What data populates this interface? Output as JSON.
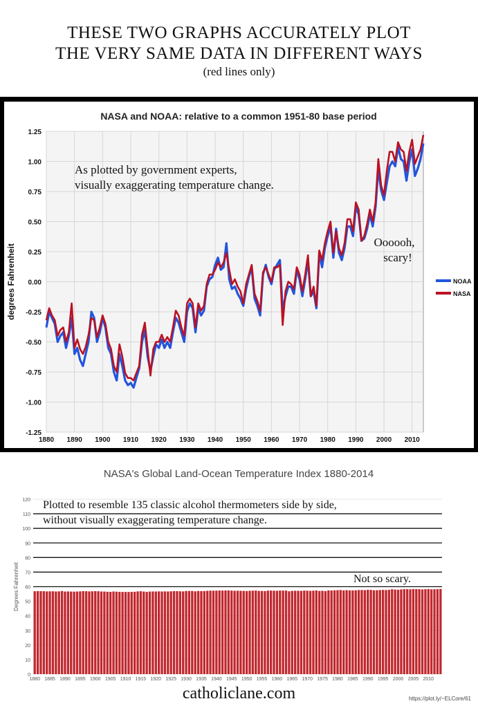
{
  "headline": {
    "line1": "THESE TWO GRAPHS ACCURATELY PLOT",
    "line2": "THE VERY SAME DATA IN DIFFERENT WAYS",
    "line3": "(red lines only)"
  },
  "colors": {
    "noaa": "#2255dd",
    "nasa": "#bb1122",
    "bar": "#c0282e",
    "panel_bg": "#000000"
  },
  "footer": {
    "site": "catholiclane.com",
    "url": "https://plot.ly/~ELCore/61"
  },
  "chart_data": [
    {
      "type": "line",
      "title": "NASA and NOAA: relative to a common 1951-80 base period",
      "xlabel": "",
      "ylabel": "degrees Fahrenheit",
      "xlim": [
        1880,
        2014
      ],
      "ylim": [
        -1.25,
        1.25
      ],
      "xticks": [
        "1880",
        "1890",
        "1900",
        "1910",
        "1920",
        "1930",
        "1940",
        "1950",
        "1960",
        "1970",
        "1980",
        "1990",
        "2000",
        "2010"
      ],
      "yticks": [
        "1.25",
        "1.00",
        "0.75",
        "0.50",
        "0.25",
        "0.00",
        "-0.25",
        "-0.50",
        "-0.75",
        "-1.00",
        "-1.25"
      ],
      "grid": true,
      "legend": "right",
      "annotations": [
        "As plotted by government experts,",
        "visually exaggerating temperature change.",
        "Oooooh,",
        "scary!"
      ],
      "x": [
        1880,
        1881,
        1882,
        1883,
        1884,
        1885,
        1886,
        1887,
        1888,
        1889,
        1890,
        1891,
        1892,
        1893,
        1894,
        1895,
        1896,
        1897,
        1898,
        1899,
        1900,
        1901,
        1902,
        1903,
        1904,
        1905,
        1906,
        1907,
        1908,
        1909,
        1910,
        1911,
        1912,
        1913,
        1914,
        1915,
        1916,
        1917,
        1918,
        1919,
        1920,
        1921,
        1922,
        1923,
        1924,
        1925,
        1926,
        1927,
        1928,
        1929,
        1930,
        1931,
        1932,
        1933,
        1934,
        1935,
        1936,
        1937,
        1938,
        1939,
        1940,
        1941,
        1942,
        1943,
        1944,
        1945,
        1946,
        1947,
        1948,
        1949,
        1950,
        1951,
        1952,
        1953,
        1954,
        1955,
        1956,
        1957,
        1958,
        1959,
        1960,
        1961,
        1962,
        1963,
        1964,
        1965,
        1966,
        1967,
        1968,
        1969,
        1970,
        1971,
        1972,
        1973,
        1974,
        1975,
        1976,
        1977,
        1978,
        1979,
        1980,
        1981,
        1982,
        1983,
        1984,
        1985,
        1986,
        1987,
        1988,
        1989,
        1990,
        1991,
        1992,
        1993,
        1994,
        1995,
        1996,
        1997,
        1998,
        1999,
        2000,
        2001,
        2002,
        2003,
        2004,
        2005,
        2006,
        2007,
        2008,
        2009,
        2010,
        2011,
        2012,
        2013,
        2014
      ],
      "series": [
        {
          "name": "NOAA",
          "values": [
            -0.38,
            -0.25,
            -0.3,
            -0.35,
            -0.5,
            -0.45,
            -0.42,
            -0.55,
            -0.45,
            -0.3,
            -0.6,
            -0.55,
            -0.65,
            -0.7,
            -0.6,
            -0.5,
            -0.25,
            -0.3,
            -0.5,
            -0.42,
            -0.3,
            -0.38,
            -0.55,
            -0.6,
            -0.75,
            -0.82,
            -0.6,
            -0.7,
            -0.82,
            -0.86,
            -0.84,
            -0.88,
            -0.8,
            -0.72,
            -0.5,
            -0.4,
            -0.62,
            -0.74,
            -0.62,
            -0.52,
            -0.55,
            -0.48,
            -0.55,
            -0.5,
            -0.55,
            -0.42,
            -0.3,
            -0.34,
            -0.42,
            -0.5,
            -0.25,
            -0.18,
            -0.22,
            -0.42,
            -0.22,
            -0.28,
            -0.24,
            -0.04,
            0.02,
            0.04,
            0.14,
            0.2,
            0.1,
            0.12,
            0.32,
            0.02,
            -0.06,
            -0.04,
            -0.1,
            -0.14,
            -0.2,
            -0.06,
            0.04,
            0.12,
            -0.14,
            -0.2,
            -0.28,
            0.06,
            0.14,
            0.04,
            -0.02,
            0.1,
            0.14,
            0.18,
            -0.24,
            -0.12,
            -0.04,
            -0.04,
            -0.1,
            0.1,
            0.02,
            -0.12,
            0.02,
            0.18,
            -0.12,
            -0.08,
            -0.22,
            0.24,
            0.12,
            0.28,
            0.38,
            0.46,
            0.2,
            0.44,
            0.24,
            0.18,
            0.28,
            0.46,
            0.46,
            0.38,
            0.62,
            0.56,
            0.34,
            0.36,
            0.44,
            0.56,
            0.46,
            0.62,
            0.94,
            0.76,
            0.68,
            0.82,
            0.96,
            1.0,
            0.96,
            1.12,
            1.02,
            1.0,
            0.84,
            1.0,
            1.1,
            0.88,
            0.94,
            1.02,
            1.15
          ]
        },
        {
          "name": "NASA",
          "values": [
            -0.32,
            -0.22,
            -0.28,
            -0.32,
            -0.45,
            -0.4,
            -0.38,
            -0.5,
            -0.42,
            -0.18,
            -0.55,
            -0.48,
            -0.56,
            -0.6,
            -0.54,
            -0.44,
            -0.3,
            -0.32,
            -0.46,
            -0.38,
            -0.28,
            -0.35,
            -0.5,
            -0.56,
            -0.7,
            -0.75,
            -0.52,
            -0.62,
            -0.76,
            -0.8,
            -0.8,
            -0.82,
            -0.76,
            -0.7,
            -0.44,
            -0.34,
            -0.56,
            -0.78,
            -0.56,
            -0.5,
            -0.5,
            -0.44,
            -0.5,
            -0.46,
            -0.5,
            -0.38,
            -0.24,
            -0.28,
            -0.38,
            -0.45,
            -0.18,
            -0.14,
            -0.18,
            -0.38,
            -0.18,
            -0.24,
            -0.2,
            -0.02,
            0.06,
            0.06,
            0.1,
            0.16,
            0.12,
            0.16,
            0.24,
            0.1,
            -0.02,
            0.02,
            -0.04,
            -0.08,
            -0.18,
            -0.02,
            0.06,
            0.14,
            -0.1,
            -0.16,
            -0.24,
            0.08,
            0.12,
            0.06,
            0.0,
            0.12,
            0.12,
            0.14,
            -0.36,
            -0.08,
            0.0,
            -0.02,
            -0.06,
            0.12,
            0.06,
            -0.08,
            0.06,
            0.22,
            -0.12,
            -0.04,
            -0.2,
            0.26,
            0.18,
            0.32,
            0.42,
            0.5,
            0.24,
            0.42,
            0.28,
            0.22,
            0.32,
            0.52,
            0.52,
            0.42,
            0.66,
            0.6,
            0.34,
            0.38,
            0.48,
            0.6,
            0.5,
            0.66,
            1.02,
            0.8,
            0.72,
            0.92,
            1.08,
            1.08,
            1.0,
            1.16,
            1.1,
            1.08,
            0.92,
            1.08,
            1.18,
            0.98,
            1.04,
            1.1,
            1.22
          ]
        }
      ]
    },
    {
      "type": "bar",
      "title": "NASA's Global Land-Ocean Temperature Index 1880-2014",
      "xlabel": "",
      "ylabel": "Degrees Fahrenheit",
      "ylim": [
        0,
        120
      ],
      "xlim": [
        1880,
        2014
      ],
      "yticks": [
        "120",
        "110",
        "100",
        "90",
        "80",
        "70",
        "60",
        "50",
        "40",
        "30",
        "20",
        "10",
        "0"
      ],
      "xticks": [
        "1880",
        "1885",
        "1890",
        "1895",
        "1900",
        "1905",
        "1910",
        "1915",
        "1920",
        "1925",
        "1930",
        "1935",
        "1940",
        "1945",
        "1950",
        "1955",
        "1960",
        "1965",
        "1970",
        "1975",
        "1980",
        "1985",
        "1990",
        "1995",
        "2000",
        "2005",
        "2010"
      ],
      "grid": true,
      "annotations": [
        "Plotted to resemble 135 classic alcohol thermometers side by side,",
        "without visually exaggerating temperature change.",
        "Not so scary."
      ],
      "note": "bar heights = 57.2 °F baseline + NASA anomaly, one bar per year 1880-2014",
      "baseline": 57.2
    }
  ]
}
